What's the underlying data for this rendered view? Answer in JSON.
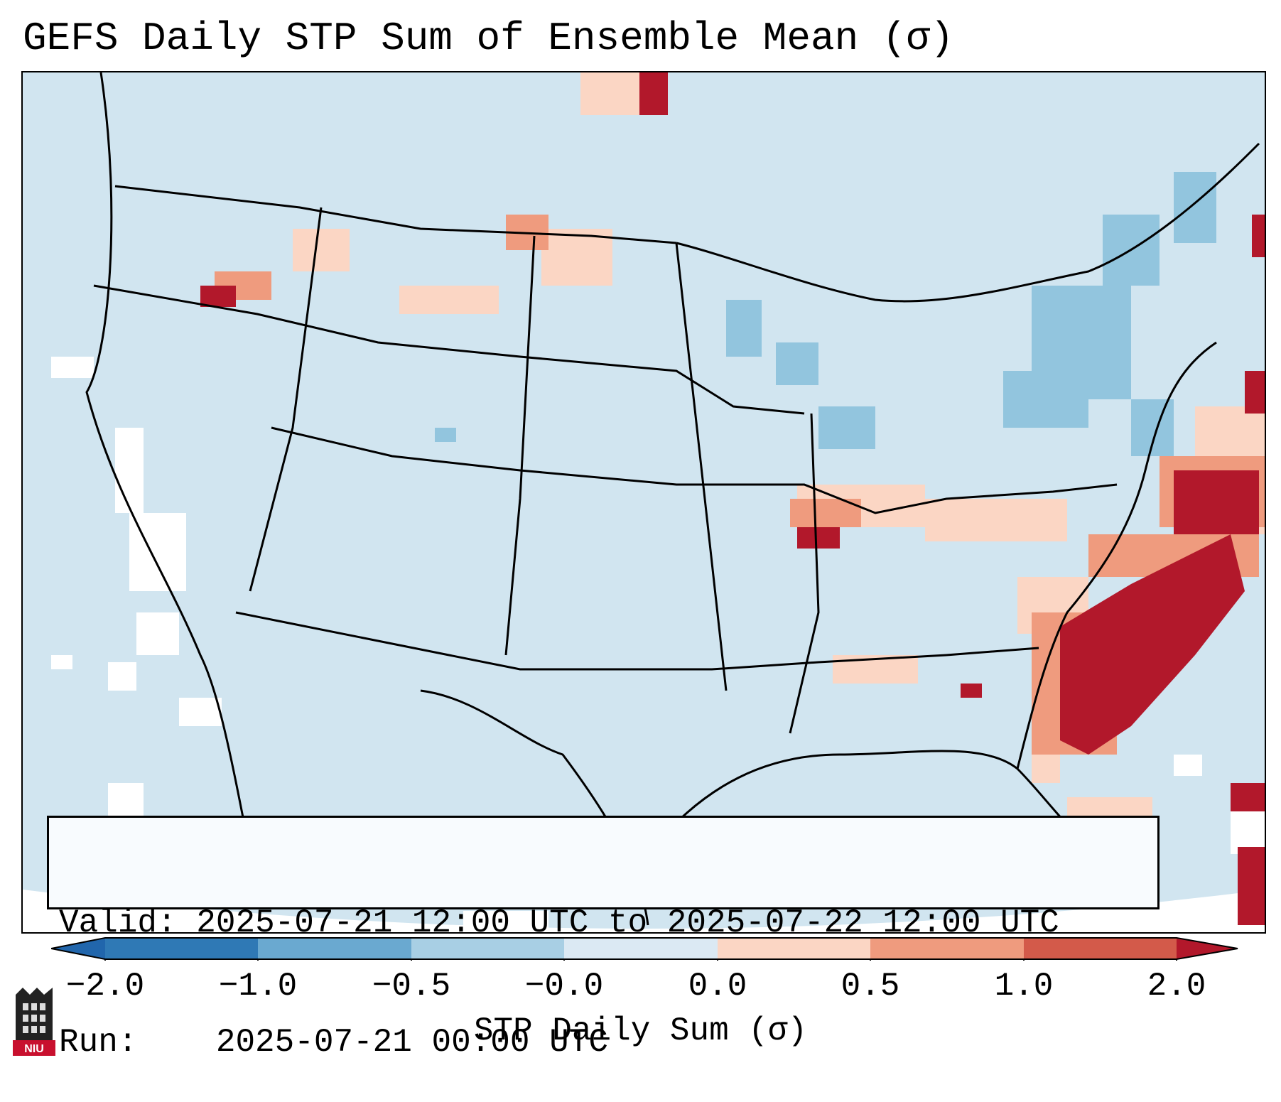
{
  "title": "GEFS Daily STP Sum of Ensemble Mean (σ)",
  "info": {
    "valid_label": "Valid:",
    "valid_value": "2025-07-21 12:00 UTC to 2025-07-22 12:00 UTC",
    "run_label": "Run:",
    "run_value": "2025-07-21 00:00 UTC"
  },
  "colorbar": {
    "label": "STP Daily Sum (σ)",
    "ticks": [
      "−2.0",
      "−1.0",
      "−0.5",
      "−0.0",
      "0.0",
      "0.5",
      "1.0",
      "2.0"
    ],
    "colors": [
      "#2f79b5",
      "#6aa9d0",
      "#a8cfe4",
      "#dbe9f3",
      "#fbd6c4",
      "#ef9b7e",
      "#d35a4a",
      "#b2182b"
    ],
    "extend_low_color": "#2166ac",
    "extend_high_color": "#b2182b"
  },
  "map": {
    "background_color": "#d1e5f0",
    "outside_color": "#ffffff",
    "line_color": "#000000",
    "cells": [
      {
        "value": 1.5
      },
      {
        "value": 0.7
      },
      {
        "value": -0.7
      },
      {
        "value": 2.0
      },
      {
        "value": 1.2
      }
    ]
  },
  "logo": {
    "text": "NIU"
  }
}
